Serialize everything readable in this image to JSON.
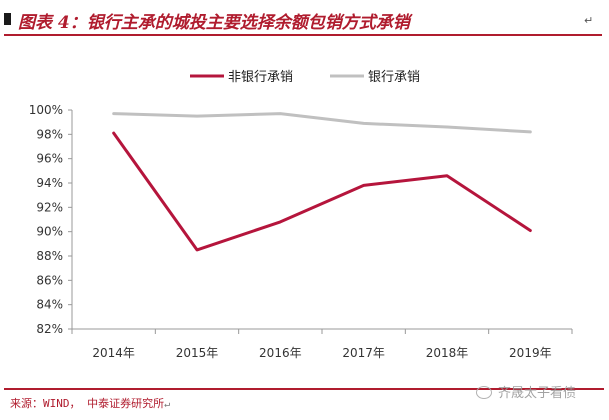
{
  "header": {
    "title": "图表 4：银行主承的城投主要选择余额包销方式承销",
    "tail_mark": "↵"
  },
  "footer": {
    "source": "来源：WIND，  中泰证券研究所",
    "source_mark": "↵"
  },
  "watermark": {
    "text": "齐晟太子看债"
  },
  "colors": {
    "accent": "#b01c2e",
    "series_nonbank": "#b5153c",
    "series_bank": "#c0c0c0",
    "axis": "#999999"
  },
  "chart_data": {
    "type": "line",
    "categories": [
      "2014年",
      "2015年",
      "2016年",
      "2017年",
      "2018年",
      "2019年"
    ],
    "series": [
      {
        "name": "非银行承销",
        "values": [
          98.1,
          88.5,
          90.8,
          93.8,
          94.6,
          90.1
        ]
      },
      {
        "name": "银行承销",
        "values": [
          99.7,
          99.5,
          99.7,
          98.9,
          98.6,
          98.2
        ]
      }
    ],
    "ylim": [
      82,
      100
    ],
    "yticks": [
      "82%",
      "84%",
      "86%",
      "88%",
      "90%",
      "92%",
      "94%",
      "96%",
      "98%",
      "100%"
    ],
    "grid": false,
    "legend": "top"
  }
}
